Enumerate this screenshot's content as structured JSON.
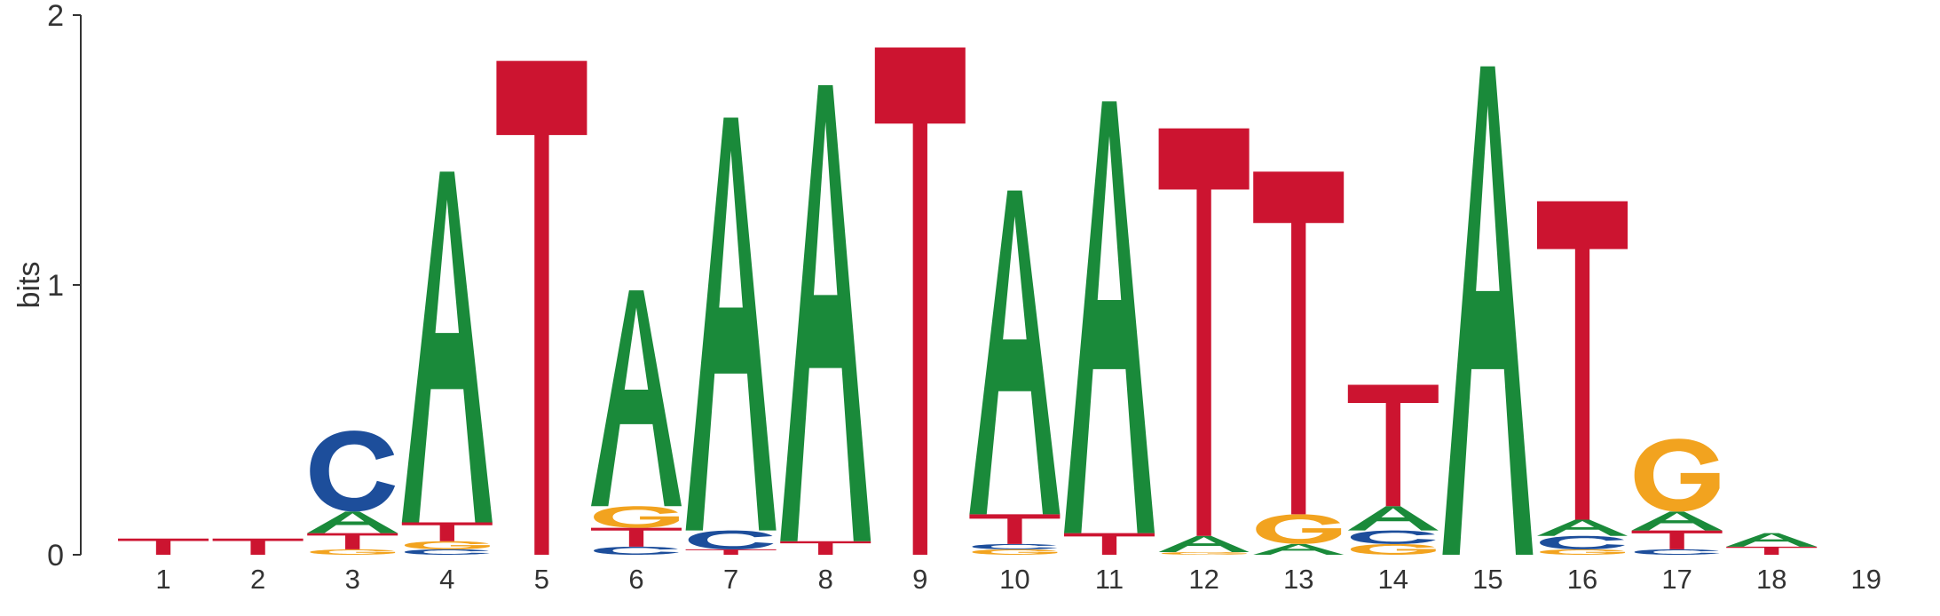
{
  "chart_data": {
    "type": "sequence-logo",
    "ylabel": "bits",
    "ylim": [
      0,
      2
    ],
    "yticks": [
      "0",
      "1",
      "2"
    ],
    "xticks": [
      "1",
      "2",
      "3",
      "4",
      "5",
      "6",
      "7",
      "8",
      "9",
      "10",
      "11",
      "12",
      "13",
      "14",
      "15",
      "16",
      "17",
      "18",
      "19"
    ],
    "colors": {
      "A": "#1a8a3a",
      "C": "#1d4e9b",
      "G": "#f2a31f",
      "T": "#cc1430"
    },
    "positions": [
      [
        {
          "base": "T",
          "bits": 0.06
        }
      ],
      [
        {
          "base": "T",
          "bits": 0.06
        }
      ],
      [
        {
          "base": "G",
          "bits": 0.02
        },
        {
          "base": "T",
          "bits": 0.06
        },
        {
          "base": "A",
          "bits": 0.08
        },
        {
          "base": "C",
          "bits": 0.3
        }
      ],
      [
        {
          "base": "C",
          "bits": 0.02
        },
        {
          "base": "G",
          "bits": 0.03
        },
        {
          "base": "T",
          "bits": 0.07
        },
        {
          "base": "A",
          "bits": 1.3
        }
      ],
      [
        {
          "base": "T",
          "bits": 1.83
        }
      ],
      [
        {
          "base": "C",
          "bits": 0.03
        },
        {
          "base": "T",
          "bits": 0.07
        },
        {
          "base": "G",
          "bits": 0.08
        },
        {
          "base": "A",
          "bits": 0.8
        }
      ],
      [
        {
          "base": "T",
          "bits": 0.02
        },
        {
          "base": "C",
          "bits": 0.07
        },
        {
          "base": "A",
          "bits": 1.53
        }
      ],
      [
        {
          "base": "T",
          "bits": 0.05
        },
        {
          "base": "A",
          "bits": 1.69
        }
      ],
      [
        {
          "base": "T",
          "bits": 1.88
        }
      ],
      [
        {
          "base": "G",
          "bits": 0.02
        },
        {
          "base": "C",
          "bits": 0.02
        },
        {
          "base": "T",
          "bits": 0.11
        },
        {
          "base": "A",
          "bits": 1.2
        }
      ],
      [
        {
          "base": "T",
          "bits": 0.08
        },
        {
          "base": "A",
          "bits": 1.6
        }
      ],
      [
        {
          "base": "G",
          "bits": 0.01
        },
        {
          "base": "A",
          "bits": 0.06
        },
        {
          "base": "T",
          "bits": 1.51
        }
      ],
      [
        {
          "base": "A",
          "bits": 0.04
        },
        {
          "base": "G",
          "bits": 0.11
        },
        {
          "base": "T",
          "bits": 1.27
        }
      ],
      [
        {
          "base": "G",
          "bits": 0.04
        },
        {
          "base": "C",
          "bits": 0.05
        },
        {
          "base": "A",
          "bits": 0.09
        },
        {
          "base": "T",
          "bits": 0.45
        }
      ],
      [
        {
          "base": "A",
          "bits": 1.81
        }
      ],
      [
        {
          "base": "G",
          "bits": 0.02
        },
        {
          "base": "C",
          "bits": 0.05
        },
        {
          "base": "A",
          "bits": 0.06
        },
        {
          "base": "T",
          "bits": 1.18
        }
      ],
      [
        {
          "base": "C",
          "bits": 0.02
        },
        {
          "base": "T",
          "bits": 0.07
        },
        {
          "base": "A",
          "bits": 0.07
        },
        {
          "base": "G",
          "bits": 0.27
        }
      ],
      [
        {
          "base": "T",
          "bits": 0.03
        },
        {
          "base": "A",
          "bits": 0.05
        }
      ],
      []
    ]
  }
}
